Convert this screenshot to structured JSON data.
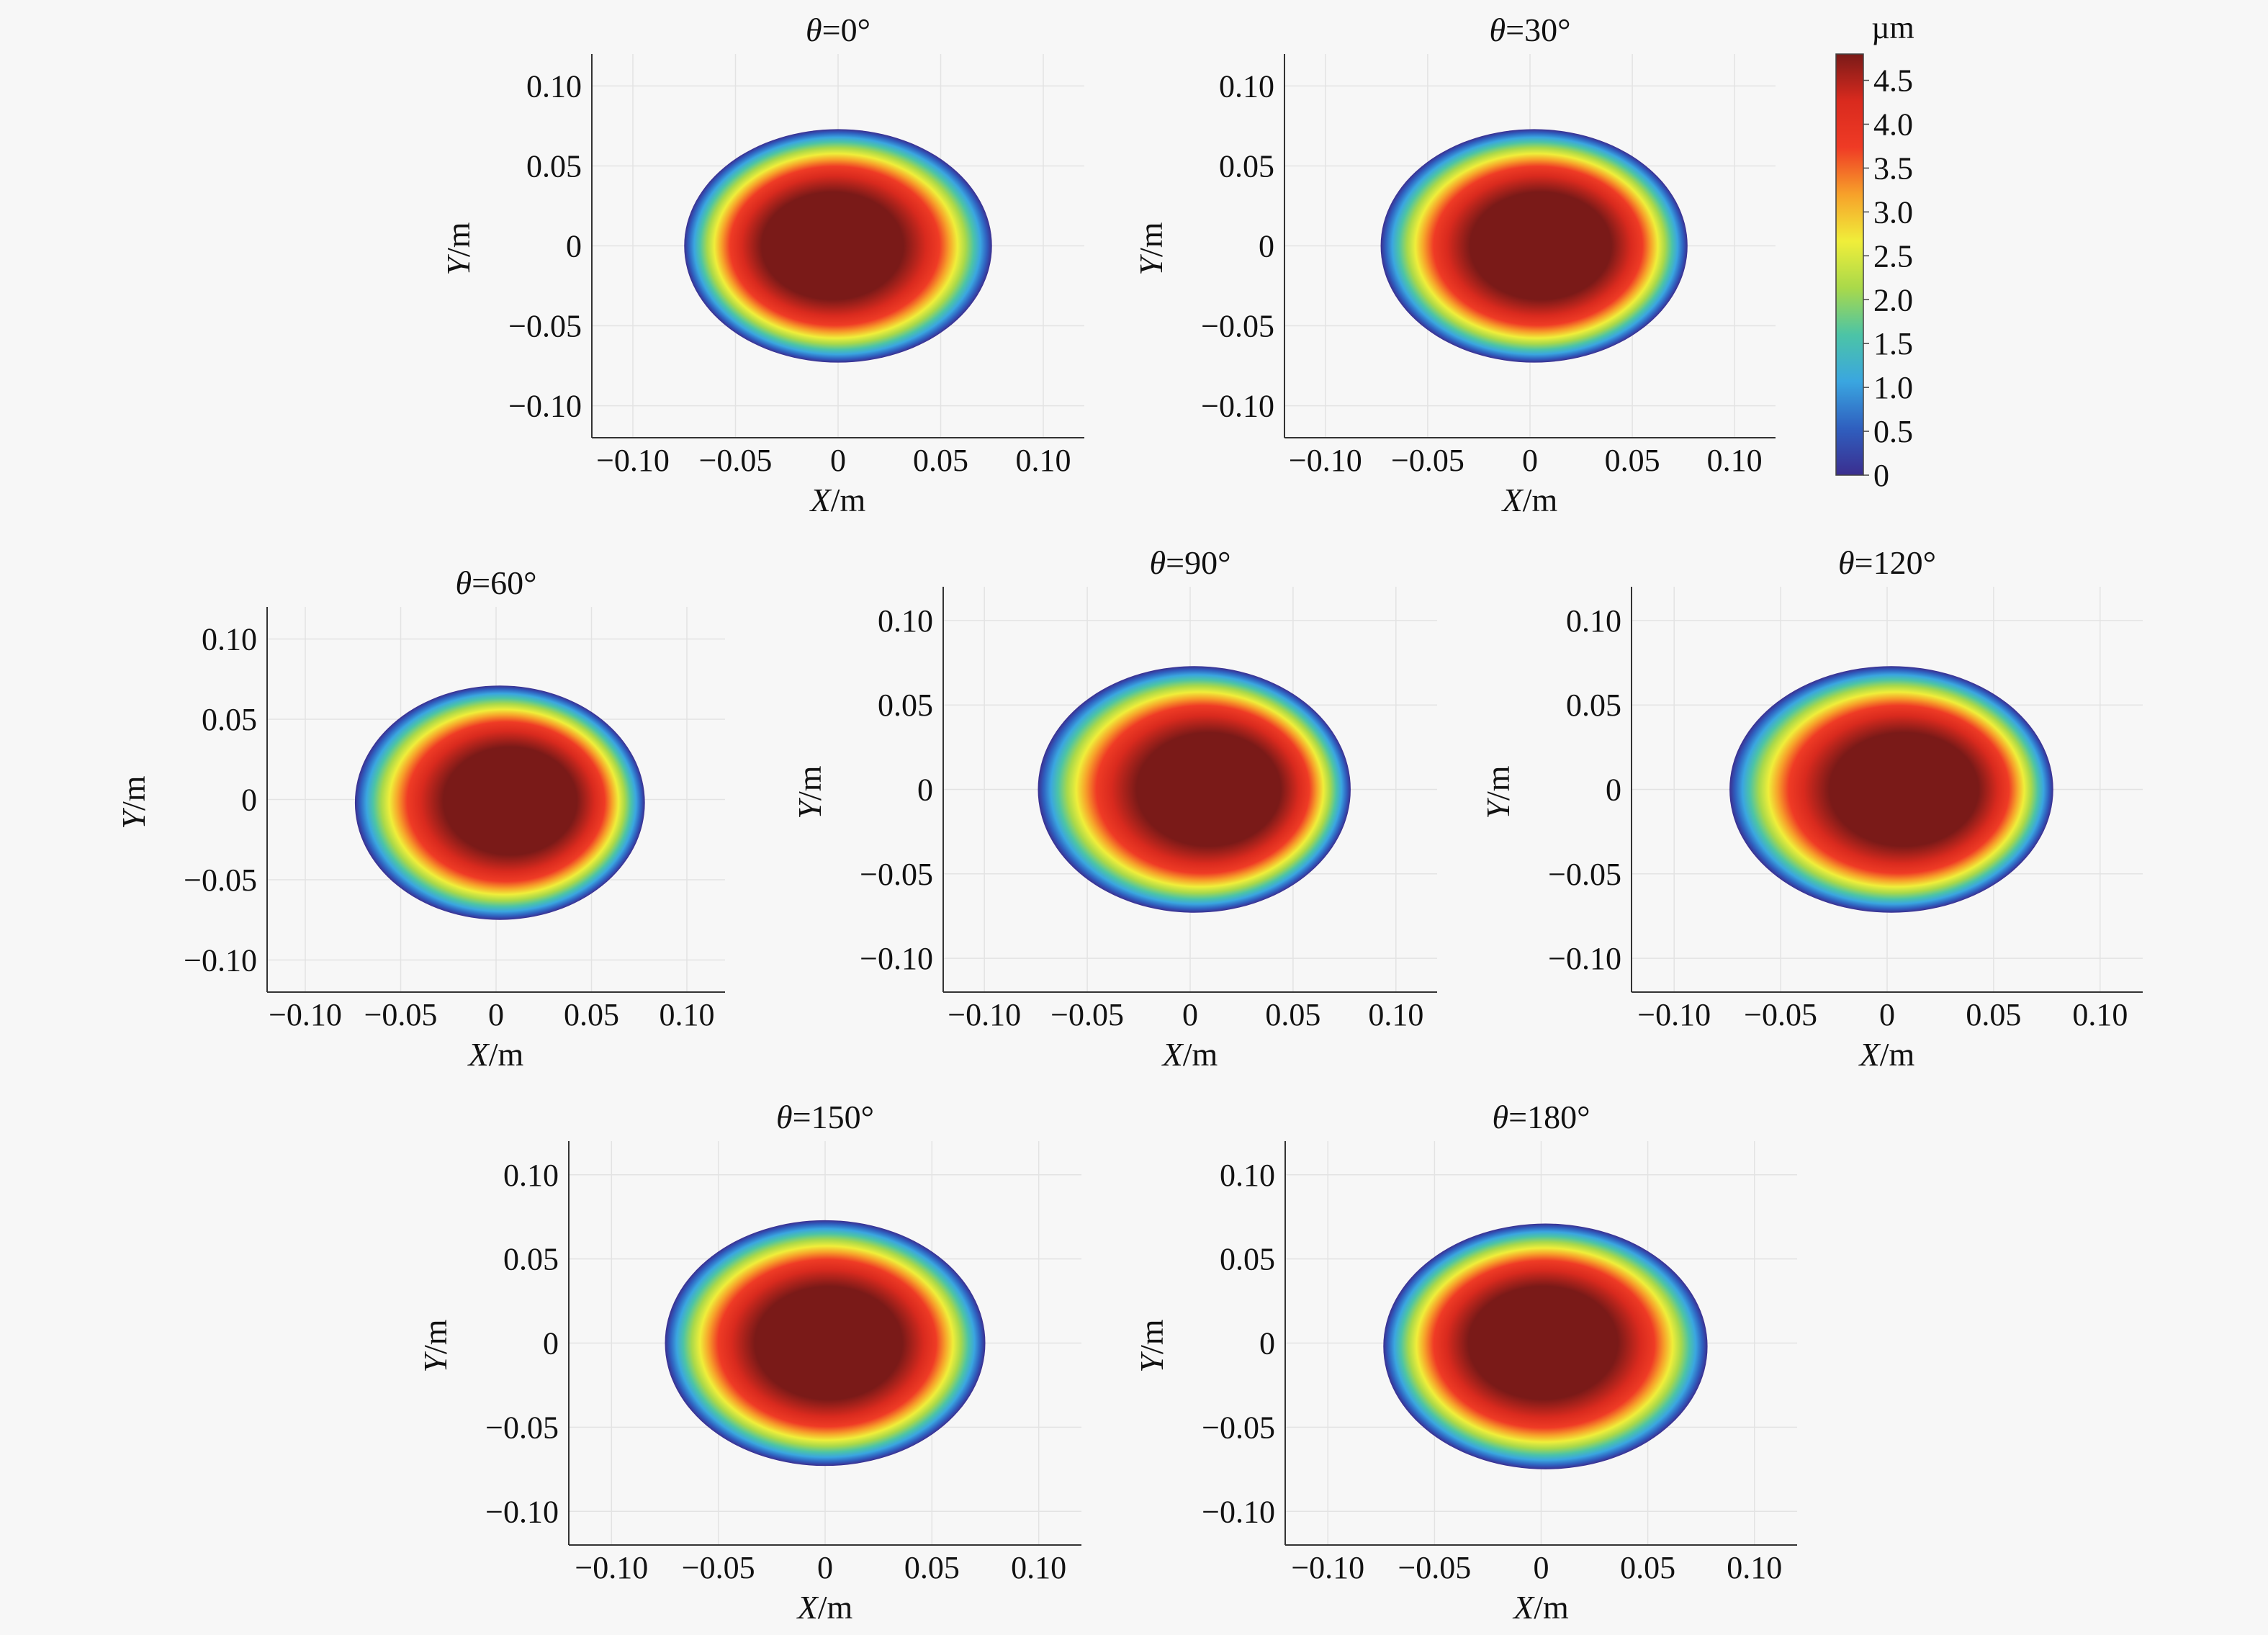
{
  "figure": {
    "colorbar": {
      "unit": "µm",
      "ticks": [
        "0",
        "0.5",
        "1.0",
        "1.5",
        "2.0",
        "2.5",
        "3.0",
        "3.5",
        "4.0",
        "4.5"
      ],
      "range": [
        0,
        4.8
      ],
      "colormap": [
        "#3b2e8f",
        "#2f5fbf",
        "#3aa6e0",
        "#4cc4a6",
        "#a9d94a",
        "#f0ee3a",
        "#f7a12a",
        "#ef3b25",
        "#d92a1e",
        "#7a1a18"
      ]
    }
  },
  "chart_data": [
    {
      "type": "heatmap",
      "title_symbol": "θ",
      "title_value": "=0°",
      "xlabel_symbol": "X",
      "xlabel_unit": "/m",
      "ylabel_symbol": "Y",
      "ylabel_unit": "/m",
      "xlim": [
        -0.12,
        0.12
      ],
      "ylim": [
        -0.12,
        0.12
      ],
      "xticks": [
        -0.1,
        -0.05,
        0,
        0.05,
        0.1
      ],
      "yticks": [
        -0.1,
        -0.05,
        0,
        0.05,
        0.1
      ],
      "xtick_labels": [
        "−0.10",
        "−0.05",
        "0",
        "0.05",
        "0.10"
      ],
      "ytick_labels": [
        "−0.10",
        "−0.05",
        "0",
        "0.05",
        "0.10"
      ],
      "region": {
        "center": [
          0,
          0
        ],
        "semi_axes": [
          0.075,
          0.073
        ]
      },
      "peak": {
        "center": [
          -0.005,
          0
        ],
        "value": 4.8
      },
      "value_range": [
        0,
        4.8
      ]
    },
    {
      "type": "heatmap",
      "title_symbol": "θ",
      "title_value": "=30°",
      "xlabel_symbol": "X",
      "xlabel_unit": "/m",
      "ylabel_symbol": "Y",
      "ylabel_unit": "/m",
      "xlim": [
        -0.12,
        0.12
      ],
      "ylim": [
        -0.12,
        0.12
      ],
      "xticks": [
        -0.1,
        -0.05,
        0,
        0.05,
        0.1
      ],
      "yticks": [
        -0.1,
        -0.05,
        0,
        0.05,
        0.1
      ],
      "xtick_labels": [
        "−0.10",
        "−0.05",
        "0",
        "0.05",
        "0.10"
      ],
      "ytick_labels": [
        "−0.10",
        "−0.05",
        "0",
        "0.05",
        "0.10"
      ],
      "region": {
        "center": [
          0.002,
          0
        ],
        "semi_axes": [
          0.075,
          0.073
        ]
      },
      "peak": {
        "center": [
          0.008,
          0
        ],
        "value": 4.8
      },
      "value_range": [
        0,
        4.8
      ]
    },
    {
      "type": "heatmap",
      "title_symbol": "θ",
      "title_value": "=60°",
      "xlabel_symbol": "X",
      "xlabel_unit": "/m",
      "ylabel_symbol": "Y",
      "ylabel_unit": "/m",
      "xlim": [
        -0.12,
        0.12
      ],
      "ylim": [
        -0.12,
        0.12
      ],
      "xticks": [
        -0.1,
        -0.05,
        0,
        0.05,
        0.1
      ],
      "yticks": [
        -0.1,
        -0.05,
        0,
        0.05,
        0.1
      ],
      "xtick_labels": [
        "−0.10",
        "−0.05",
        "0",
        "0.05",
        "0.10"
      ],
      "ytick_labels": [
        "−0.10",
        "−0.05",
        "0",
        "0.05",
        "0.10"
      ],
      "region": {
        "center": [
          0.002,
          -0.002
        ],
        "semi_axes": [
          0.076,
          0.073
        ]
      },
      "peak": {
        "center": [
          0.012,
          0
        ],
        "value": 4.8
      },
      "value_range": [
        0,
        4.8
      ]
    },
    {
      "type": "heatmap",
      "title_symbol": "θ",
      "title_value": "=90°",
      "xlabel_symbol": "X",
      "xlabel_unit": "/m",
      "ylabel_symbol": "Y",
      "ylabel_unit": "/m",
      "xlim": [
        -0.12,
        0.12
      ],
      "ylim": [
        -0.12,
        0.12
      ],
      "xticks": [
        -0.1,
        -0.05,
        0,
        0.05,
        0.1
      ],
      "yticks": [
        -0.1,
        -0.05,
        0,
        0.05,
        0.1
      ],
      "xtick_labels": [
        "−0.10",
        "−0.05",
        "0",
        "0.05",
        "0.10"
      ],
      "ytick_labels": [
        "−0.10",
        "−0.05",
        "0",
        "0.05",
        "0.10"
      ],
      "region": {
        "center": [
          0.002,
          0
        ],
        "semi_axes": [
          0.076,
          0.073
        ]
      },
      "peak": {
        "center": [
          0.015,
          0
        ],
        "value": 4.8
      },
      "value_range": [
        0,
        4.8
      ]
    },
    {
      "type": "heatmap",
      "title_symbol": "θ",
      "title_value": "=120°",
      "xlabel_symbol": "X",
      "xlabel_unit": "/m",
      "ylabel_symbol": "Y",
      "ylabel_unit": "/m",
      "xlim": [
        -0.12,
        0.12
      ],
      "ylim": [
        -0.12,
        0.12
      ],
      "xticks": [
        -0.1,
        -0.05,
        0,
        0.05,
        0.1
      ],
      "yticks": [
        -0.1,
        -0.05,
        0,
        0.05,
        0.1
      ],
      "xtick_labels": [
        "−0.10",
        "−0.05",
        "0",
        "0.05",
        "0.10"
      ],
      "ytick_labels": [
        "−0.10",
        "−0.05",
        "0",
        "0.05",
        "0.10"
      ],
      "region": {
        "center": [
          0.002,
          0
        ],
        "semi_axes": [
          0.076,
          0.073
        ]
      },
      "peak": {
        "center": [
          0.013,
          0
        ],
        "value": 4.8
      },
      "value_range": [
        0,
        4.8
      ]
    },
    {
      "type": "heatmap",
      "title_symbol": "θ",
      "title_value": "=150°",
      "xlabel_symbol": "X",
      "xlabel_unit": "/m",
      "ylabel_symbol": "Y",
      "ylabel_unit": "/m",
      "xlim": [
        -0.12,
        0.12
      ],
      "ylim": [
        -0.12,
        0.12
      ],
      "xticks": [
        -0.1,
        -0.05,
        0,
        0.05,
        0.1
      ],
      "yticks": [
        -0.1,
        -0.05,
        0,
        0.05,
        0.1
      ],
      "xtick_labels": [
        "−0.10",
        "−0.05",
        "0",
        "0.05",
        "0.10"
      ],
      "ytick_labels": [
        "−0.10",
        "−0.05",
        "0",
        "0.05",
        "0.10"
      ],
      "region": {
        "center": [
          0,
          0
        ],
        "semi_axes": [
          0.075,
          0.073
        ]
      },
      "peak": {
        "center": [
          0.003,
          0
        ],
        "value": 4.8
      },
      "value_range": [
        0,
        4.8
      ]
    },
    {
      "type": "heatmap",
      "title_symbol": "θ",
      "title_value": "=180°",
      "xlabel_symbol": "X",
      "xlabel_unit": "/m",
      "ylabel_symbol": "Y",
      "ylabel_unit": "/m",
      "xlim": [
        -0.12,
        0.12
      ],
      "ylim": [
        -0.12,
        0.12
      ],
      "xticks": [
        -0.1,
        -0.05,
        0,
        0.05,
        0.1
      ],
      "yticks": [
        -0.1,
        -0.05,
        0,
        0.05,
        0.1
      ],
      "xtick_labels": [
        "−0.10",
        "−0.05",
        "0",
        "0.05",
        "0.10"
      ],
      "ytick_labels": [
        "−0.10",
        "−0.05",
        "0",
        "0.05",
        "0.10"
      ],
      "region": {
        "center": [
          0.002,
          -0.002
        ],
        "semi_axes": [
          0.076,
          0.073
        ]
      },
      "peak": {
        "center": [
          0.0,
          0.002
        ],
        "value": 4.8
      },
      "value_range": [
        0,
        4.8
      ]
    }
  ]
}
